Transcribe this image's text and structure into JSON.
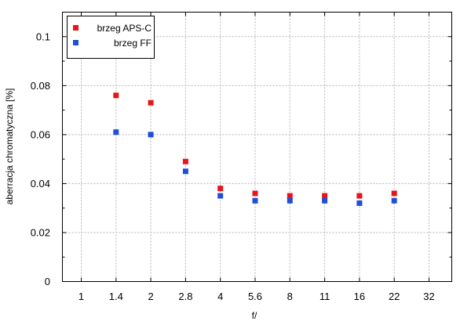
{
  "chart_data": {
    "type": "scatter",
    "title": "",
    "xlabel": "f/",
    "ylabel": "aberracja chromatyczna [%]",
    "categories": [
      "1",
      "1.4",
      "2",
      "2.8",
      "4",
      "5.6",
      "8",
      "11",
      "16",
      "22",
      "32"
    ],
    "ylim": [
      0,
      0.11
    ],
    "yticks": [
      "0",
      "0.02",
      "0.04",
      "0.06",
      "0.08",
      "0.1"
    ],
    "grid": true,
    "legend_position": "top-left",
    "series": [
      {
        "name": "brzeg APS-C",
        "color": "#e8141a",
        "values": [
          null,
          0.076,
          0.073,
          0.049,
          0.038,
          0.036,
          0.035,
          0.035,
          0.035,
          0.036,
          null
        ]
      },
      {
        "name": "brzeg FF",
        "color": "#1f4fd6",
        "values": [
          null,
          0.061,
          0.06,
          0.045,
          0.035,
          0.033,
          0.033,
          0.033,
          0.032,
          0.033,
          null
        ]
      }
    ]
  }
}
